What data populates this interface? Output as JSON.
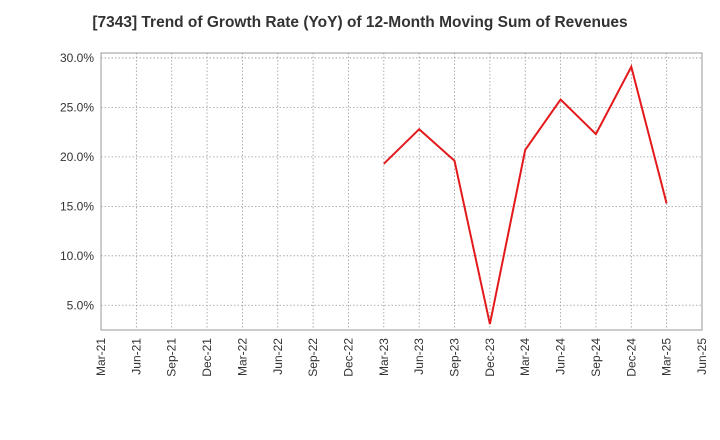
{
  "chart_data": {
    "type": "line",
    "title": "[7343]  Trend of Growth Rate (YoY) of 12-Month Moving Sum of Revenues",
    "xlabel": "",
    "ylabel": "",
    "x_ticks": [
      "Mar-21",
      "Jun-21",
      "Sep-21",
      "Dec-21",
      "Mar-22",
      "Jun-22",
      "Sep-22",
      "Dec-22",
      "Mar-23",
      "Jun-23",
      "Sep-23",
      "Dec-23",
      "Mar-24",
      "Jun-24",
      "Sep-24",
      "Dec-24",
      "Mar-25",
      "Jun-25"
    ],
    "y_ticks": [
      "5.0%",
      "10.0%",
      "15.0%",
      "20.0%",
      "25.0%",
      "30.0%"
    ],
    "y_tick_values": [
      5,
      10,
      15,
      20,
      25,
      30
    ],
    "ylim": [
      2.5,
      30.5
    ],
    "grid": true,
    "series": [
      {
        "color": "#e31a1c",
        "points": [
          {
            "x": "Mar-23",
            "y": 19.3
          },
          {
            "x": "Jun-23",
            "y": 22.8
          },
          {
            "x": "Sep-23",
            "y": 19.6
          },
          {
            "x": "Dec-23",
            "y": 3.1
          },
          {
            "x": "Mar-24",
            "y": 20.7
          },
          {
            "x": "Jun-24",
            "y": 25.8
          },
          {
            "x": "Sep-24",
            "y": 22.3
          },
          {
            "x": "Dec-24",
            "y": 29.1
          },
          {
            "x": "Mar-25",
            "y": 15.3
          }
        ]
      }
    ]
  }
}
